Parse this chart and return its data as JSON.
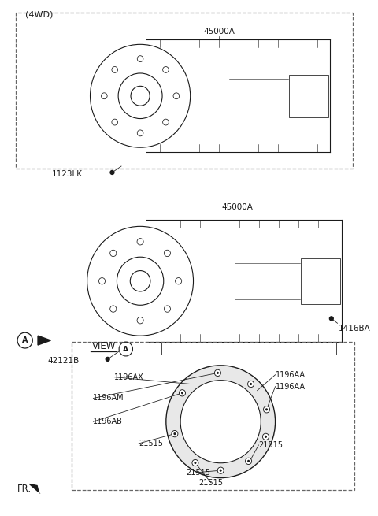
{
  "bg_color": "#ffffff",
  "line_color": "#1a1a1a",
  "title_4wd": "(4WD)",
  "label_45000A_top": "45000A",
  "label_1123LK": "1123LK",
  "label_45000A_mid": "45000A",
  "label_42121B": "42121B",
  "label_1416BA": "1416BA",
  "label_view_a": "VIEW",
  "label_1196AX": "1196AX",
  "label_1196AA_1": "1196AA",
  "label_1196AA_2": "1196AA",
  "label_1196AM": "1196AM",
  "label_1196AB": "1196AB",
  "label_21515_1": "21515",
  "label_21515_2": "21515",
  "label_21515_3": "21515",
  "label_21515_4": "21515",
  "label_FR": "FR.",
  "fig_width": 4.8,
  "fig_height": 6.55,
  "dpi": 100
}
